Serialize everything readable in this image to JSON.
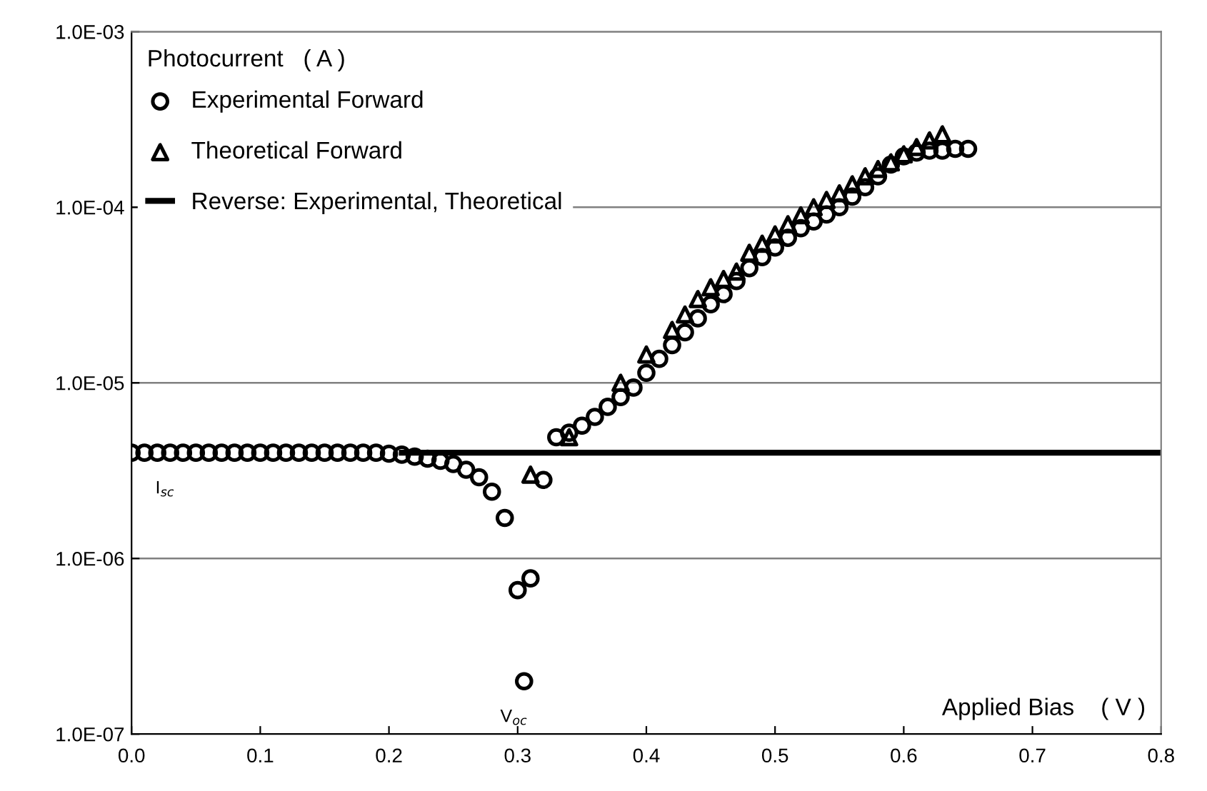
{
  "chart_data": {
    "type": "scatter",
    "xlabel": "Applied Bias    ( V )",
    "ylabel": "Photocurrent   ( A )",
    "log": "y",
    "grid": "y",
    "legend": "top left",
    "xlim": [
      0.0,
      0.8
    ],
    "xticks": [
      {
        "value": 0.0,
        "label": "0.0"
      },
      0.1,
      0.2,
      0.3,
      0.4,
      0.5,
      0.6,
      0.7,
      0.8
    ],
    "ylim": [
      1e-07,
      0.001
    ],
    "yticks": [
      {
        "value": 1e-07,
        "label": "1.0E-07"
      },
      {
        "value": 1e-06,
        "label": "1.0E-06"
      },
      {
        "value": 1e-05,
        "label": "1.0E-05"
      },
      {
        "value": 0.0001,
        "label": "1.0E-04"
      },
      {
        "value": 0.001,
        "label": "1.0E-03"
      }
    ],
    "annotations": [
      {
        "text": "I$_{sc}$",
        "x": 0.0,
        "y": 4e-06
      },
      {
        "text": "V$_{oc}$",
        "x": 0.305,
        "y": 2e-07
      }
    ],
    "series": [
      {
        "name": "Experimental Forward",
        "color": "#000000",
        "marker": "circle",
        "x": [
          0.0,
          0.01,
          0.02,
          0.03,
          0.04,
          0.05,
          0.06,
          0.07,
          0.08,
          0.09,
          0.1,
          0.11,
          0.12,
          0.13,
          0.14,
          0.15,
          0.16,
          0.17,
          0.18,
          0.19,
          0.2,
          0.21,
          0.22,
          0.23,
          0.24,
          0.25,
          0.26,
          0.27,
          0.28,
          0.29,
          0.3,
          0.305,
          0.31,
          0.32,
          0.33,
          0.34,
          0.35,
          0.36,
          0.37,
          0.38,
          0.39,
          0.4,
          0.41,
          0.42,
          0.43,
          0.44,
          0.45,
          0.46,
          0.47,
          0.48,
          0.49,
          0.5,
          0.51,
          0.52,
          0.53,
          0.54,
          0.55,
          0.56,
          0.57,
          0.58,
          0.59,
          0.6,
          0.61,
          0.62,
          0.63,
          0.64,
          0.65
        ],
        "values": [
          4e-06,
          4e-06,
          4e-06,
          4e-06,
          4e-06,
          4e-06,
          4e-06,
          4e-06,
          4e-06,
          4e-06,
          4e-06,
          4e-06,
          4e-06,
          4e-06,
          4e-06,
          4e-06,
          4e-06,
          4e-06,
          4e-06,
          4e-06,
          3.95e-06,
          3.9e-06,
          3.8e-06,
          3.7e-06,
          3.6e-06,
          3.45e-06,
          3.2e-06,
          2.9e-06,
          2.4e-06,
          1.7e-06,
          6.6e-07,
          2e-07,
          7.7e-07,
          2.8e-06,
          4.9e-06,
          5.2e-06,
          5.7e-06,
          6.4e-06,
          7.3e-06,
          8.3e-06,
          9.4e-06,
          1.14e-05,
          1.37e-05,
          1.64e-05,
          1.94e-05,
          2.33e-05,
          2.8e-05,
          3.2e-05,
          3.8e-05,
          4.5e-05,
          5.2e-05,
          5.9e-05,
          6.7e-05,
          7.6e-05,
          8.3e-05,
          9.1e-05,
          0.0001,
          0.000115,
          0.00013,
          0.00015,
          0.000175,
          0.000195,
          0.000205,
          0.00021,
          0.00021,
          0.000215,
          0.000215
        ]
      },
      {
        "name": "Theoretical Forward",
        "color": "#000000",
        "marker": "triangle",
        "x": [
          0.31,
          0.34,
          0.38,
          0.4,
          0.42,
          0.43,
          0.44,
          0.45,
          0.46,
          0.47,
          0.48,
          0.49,
          0.5,
          0.51,
          0.52,
          0.53,
          0.54,
          0.55,
          0.56,
          0.57,
          0.58,
          0.59,
          0.6,
          0.61,
          0.62,
          0.63
        ],
        "values": [
          3e-06,
          4.9e-06,
          1e-05,
          1.45e-05,
          2e-05,
          2.45e-05,
          3e-05,
          3.5e-05,
          3.9e-05,
          4.3e-05,
          5.5e-05,
          6.2e-05,
          7e-05,
          8e-05,
          9e-05,
          0.0001,
          0.00011,
          0.00012,
          0.000135,
          0.00015,
          0.000165,
          0.00018,
          0.0002,
          0.00022,
          0.00024,
          0.00026
        ]
      },
      {
        "name": "Reverse: Experimental, Theoretical",
        "color": "#000000",
        "type": "line",
        "line_style": "solid",
        "x": [
          0.21,
          0.8
        ],
        "values": [
          4e-06,
          4e-06
        ]
      }
    ]
  }
}
